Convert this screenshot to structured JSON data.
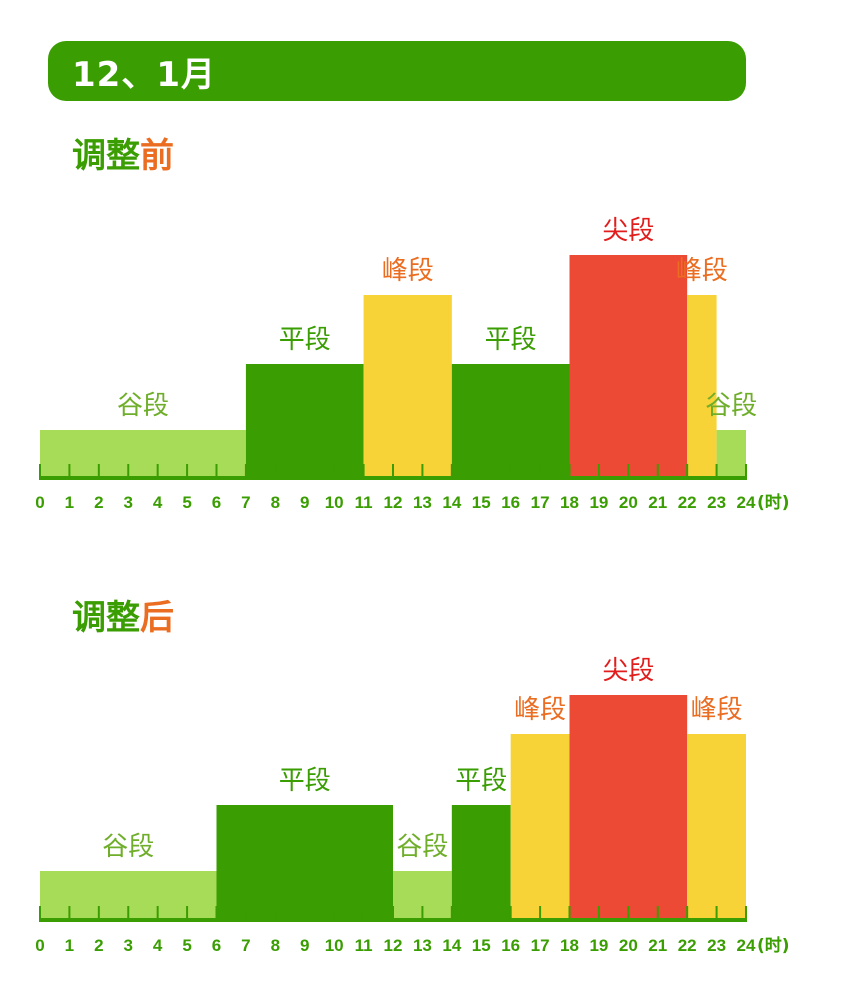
{
  "banner": {
    "title": "12、1月"
  },
  "colors": {
    "green": "#3a9d02",
    "light_green": "#a7dc58",
    "yellow": "#f7d337",
    "red": "#ec4a34",
    "orange_text": "#ea6d21",
    "red_text": "#e11d1d",
    "label_green": "#6fae2a"
  },
  "sections": [
    {
      "title_a": "调整",
      "title_b": "前"
    },
    {
      "title_a": "调整",
      "title_b": "后"
    }
  ],
  "chart_data": [
    {
      "type": "bar",
      "title": "调整前",
      "x_unit": "(时)",
      "xlim": [
        0,
        24
      ],
      "ticks": [
        0,
        1,
        2,
        3,
        4,
        5,
        6,
        7,
        8,
        9,
        10,
        11,
        12,
        13,
        14,
        15,
        16,
        17,
        18,
        19,
        20,
        21,
        22,
        23,
        24
      ],
      "segments": [
        {
          "start": 0,
          "end": 7,
          "category": "谷段",
          "level": 1
        },
        {
          "start": 7,
          "end": 11,
          "category": "平段",
          "level": 2
        },
        {
          "start": 11,
          "end": 14,
          "category": "峰段",
          "level": 3
        },
        {
          "start": 14,
          "end": 18,
          "category": "平段",
          "level": 2
        },
        {
          "start": 18,
          "end": 22,
          "category": "尖段",
          "level": 4
        },
        {
          "start": 22,
          "end": 23,
          "category": "峰段",
          "level": 3
        },
        {
          "start": 23,
          "end": 24,
          "category": "谷段",
          "level": 1
        }
      ]
    },
    {
      "type": "bar",
      "title": "调整后",
      "x_unit": "(时)",
      "xlim": [
        0,
        24
      ],
      "ticks": [
        0,
        1,
        2,
        3,
        4,
        5,
        6,
        7,
        8,
        9,
        10,
        11,
        12,
        13,
        14,
        15,
        16,
        17,
        18,
        19,
        20,
        21,
        22,
        23,
        24
      ],
      "segments": [
        {
          "start": 0,
          "end": 6,
          "category": "谷段",
          "level": 1
        },
        {
          "start": 6,
          "end": 12,
          "category": "平段",
          "level": 2
        },
        {
          "start": 12,
          "end": 14,
          "category": "谷段",
          "level": 1
        },
        {
          "start": 14,
          "end": 16,
          "category": "平段",
          "level": 2
        },
        {
          "start": 16,
          "end": 18,
          "category": "峰段",
          "level": 3
        },
        {
          "start": 18,
          "end": 22,
          "category": "尖段",
          "level": 4
        },
        {
          "start": 22,
          "end": 24,
          "category": "峰段",
          "level": 3
        }
      ]
    }
  ]
}
